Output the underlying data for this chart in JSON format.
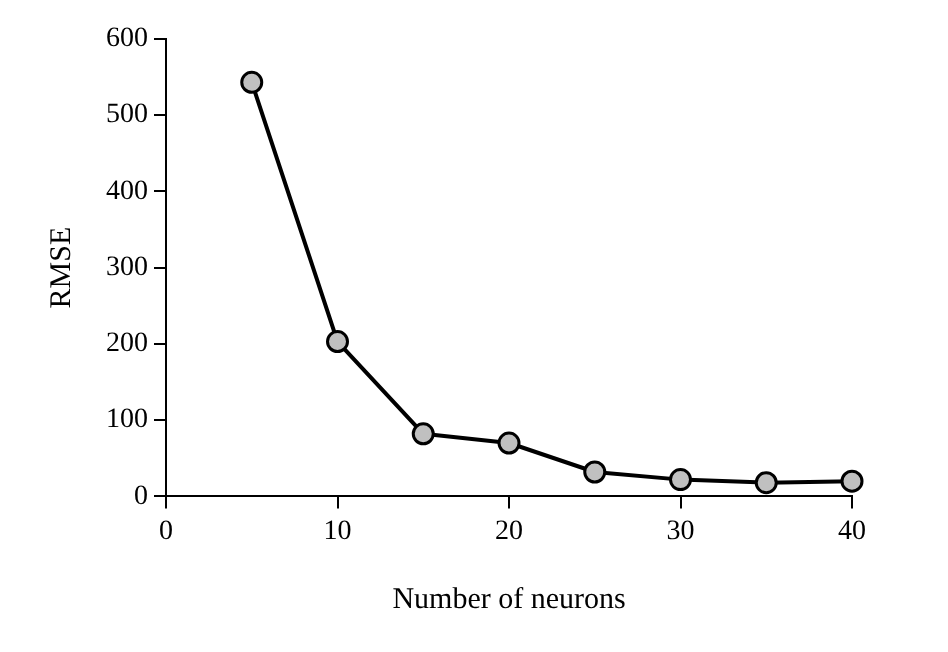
{
  "chart_data": {
    "type": "line",
    "xlabel": "Number of neurons",
    "ylabel": "RMSE",
    "x": [
      5,
      10,
      15,
      20,
      25,
      30,
      35,
      40
    ],
    "series": [
      {
        "color": "#000000",
        "values": [
          543,
          203,
          82,
          70,
          32,
          22,
          18,
          20
        ]
      }
    ],
    "xlim": [
      0,
      40
    ],
    "xticks": [
      0,
      10,
      20,
      30,
      40
    ],
    "ylim": [
      0,
      600
    ],
    "yticks": [
      0,
      100,
      200,
      300,
      400,
      500,
      600
    ],
    "grid": false,
    "legend": false,
    "marker": "circle",
    "line_style": "solid"
  }
}
